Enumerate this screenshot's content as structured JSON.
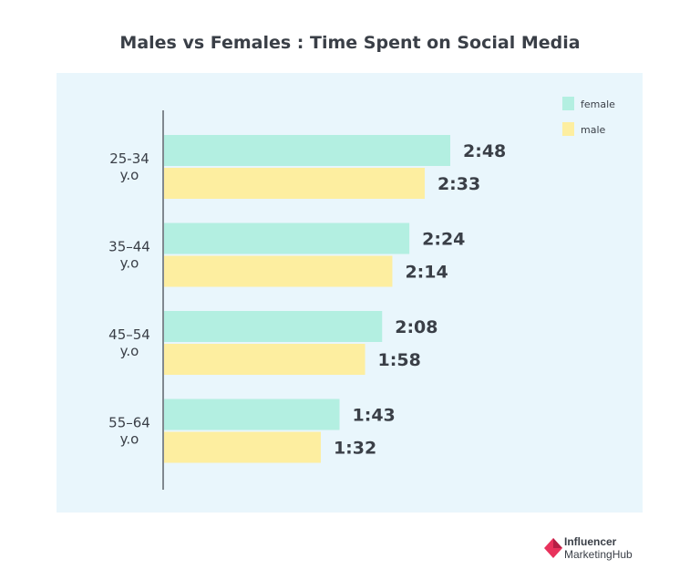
{
  "chart_data": {
    "type": "bar",
    "orientation": "horizontal",
    "title": "Males vs Females : Time Spent on Social Media",
    "categories": [
      [
        "25-34",
        "y.o"
      ],
      [
        "35–44",
        "y.o"
      ],
      [
        "45–54",
        "y.o"
      ],
      [
        "55–64",
        "y.o"
      ]
    ],
    "series": [
      {
        "name": "female",
        "color": "#b3efe1",
        "values": [
          168,
          144,
          128,
          103
        ],
        "labels": [
          "2:48",
          "2:24",
          "2:08",
          "1:43"
        ]
      },
      {
        "name": "male",
        "color": "#fdeea0",
        "values": [
          153,
          134,
          118,
          92
        ],
        "labels": [
          "2:33",
          "2:14",
          "1:58",
          "1:32"
        ]
      }
    ],
    "value_unit": "minutes",
    "xlim": [
      0,
      170
    ],
    "grid": false,
    "legend_position": "top-right"
  },
  "brand": {
    "line1": "Influencer",
    "line2": "MarketingHub",
    "colors": {
      "icon": "#e8325c",
      "icon_dark": "#b51f45"
    }
  }
}
